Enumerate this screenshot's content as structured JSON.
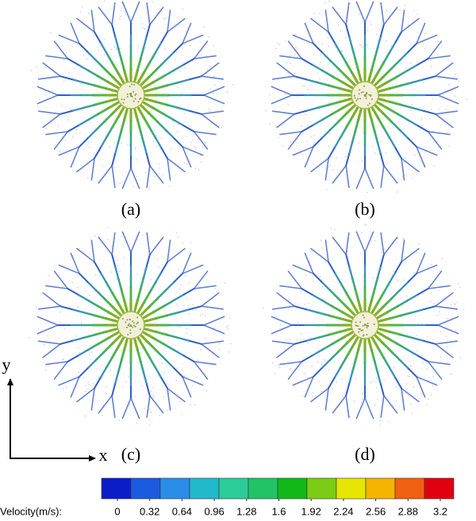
{
  "panels": [
    {
      "label": "(a)"
    },
    {
      "label": "(b)"
    },
    {
      "label": "(c)"
    },
    {
      "label": "(d)"
    }
  ],
  "axes": {
    "x": "x",
    "y": "y"
  },
  "colorbar": {
    "label": "Velocity(m/s):",
    "ticks": [
      0,
      0.32,
      0.64,
      0.96,
      1.28,
      1.6,
      1.92,
      2.24,
      2.56,
      2.88,
      3.2
    ],
    "colors": [
      "#0a1ec8",
      "#1c5ae0",
      "#2a8ee8",
      "#22b9cc",
      "#2ccc9a",
      "#20c466",
      "#12b818",
      "#7ccc16",
      "#e6e600",
      "#f4b400",
      "#f06010",
      "#e00010"
    ]
  }
}
